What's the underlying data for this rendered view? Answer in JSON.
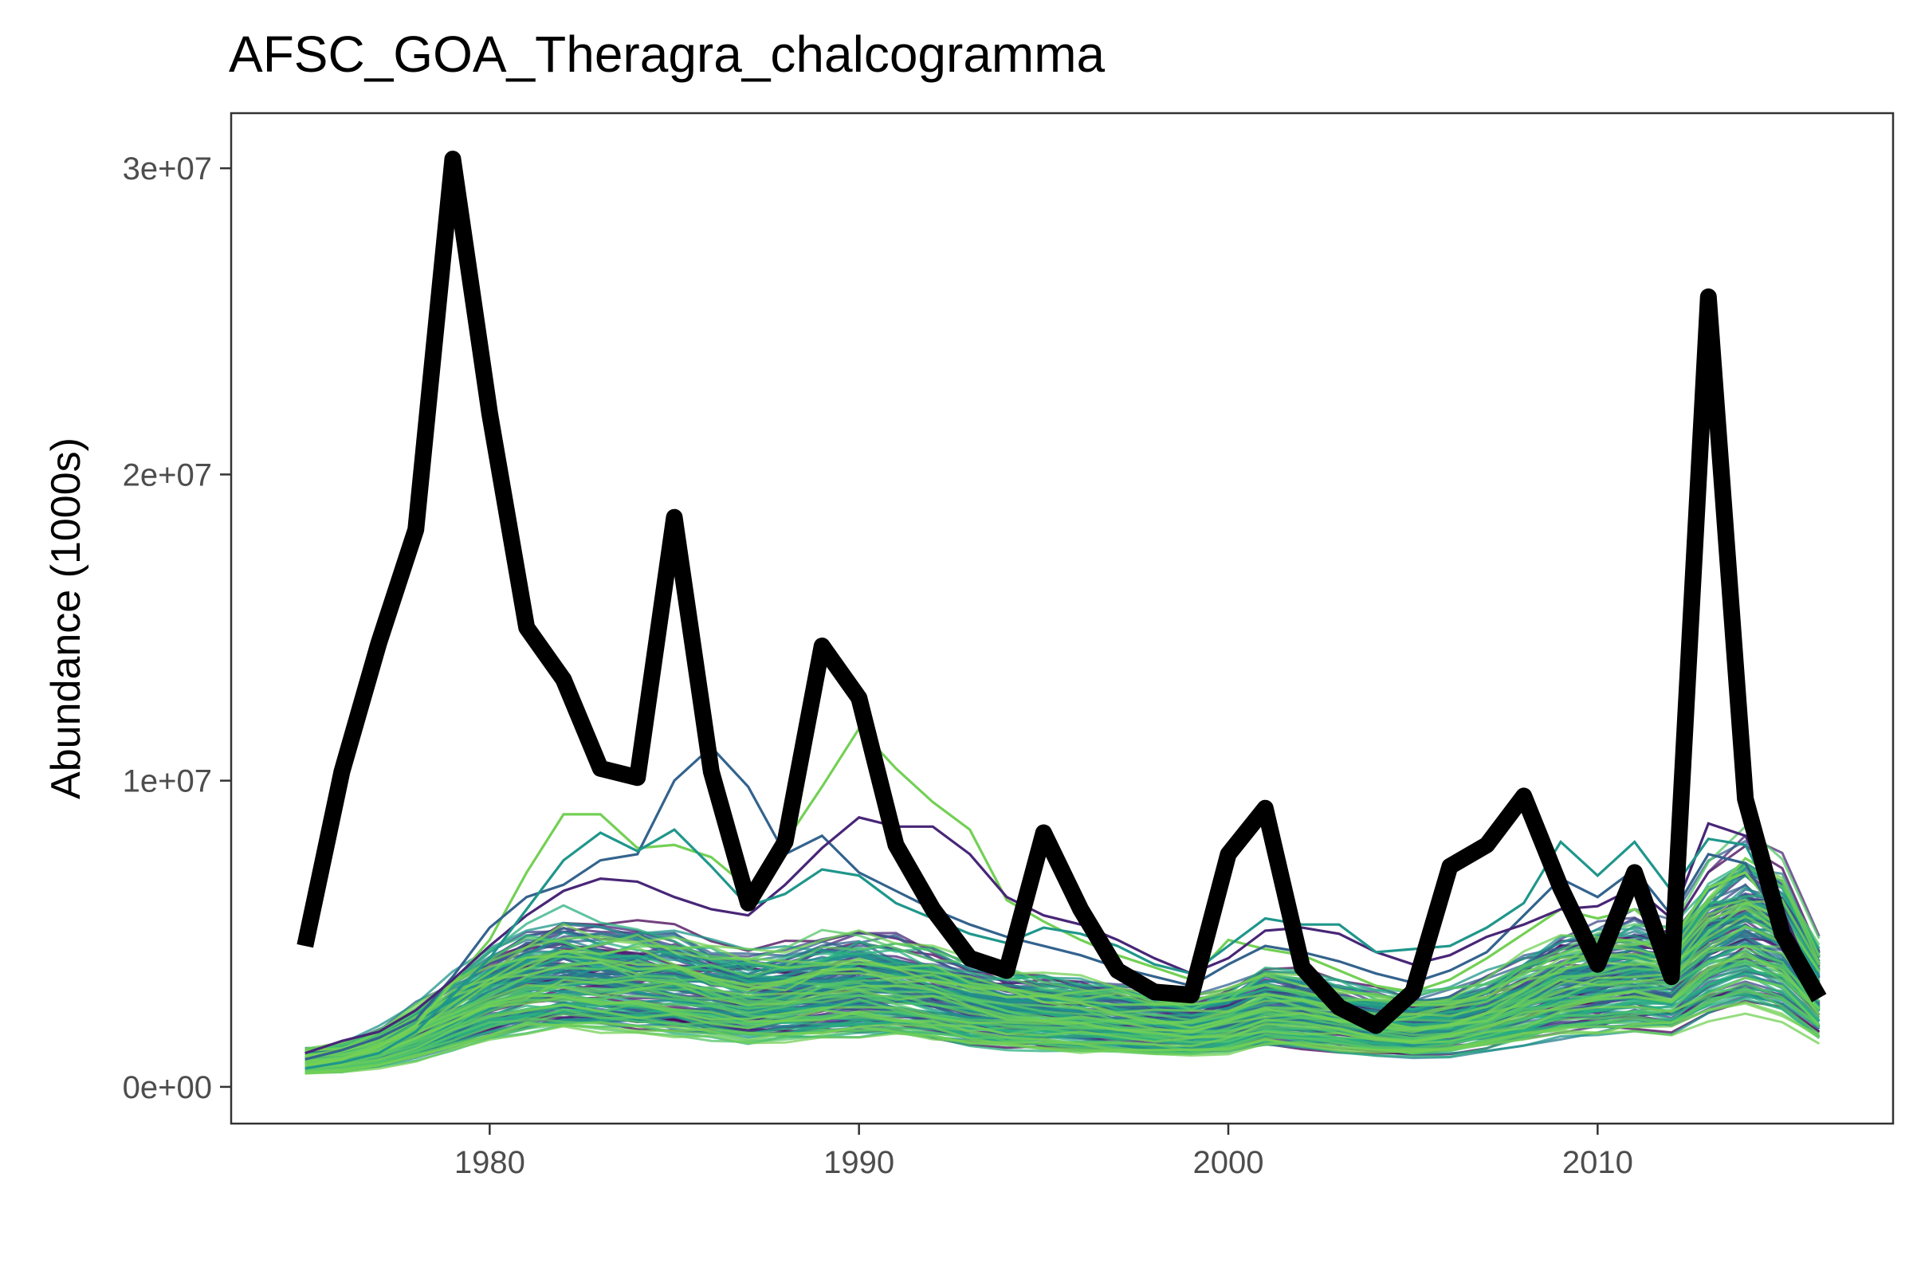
{
  "chart_data": {
    "type": "line",
    "title": "AFSC_GOA_Theragra_chalcogramma",
    "xlabel": "",
    "ylabel": "Abundance (1000s)",
    "xlim": [
      1973,
      2018
    ],
    "ylim": [
      -1200000,
      31800000
    ],
    "x_ticks": [
      1980,
      1990,
      2000,
      2010
    ],
    "y_ticks": [
      {
        "value": 0,
        "label": "0e+00"
      },
      {
        "value": 10000000,
        "label": "1e+07"
      },
      {
        "value": 20000000,
        "label": "2e+07"
      },
      {
        "value": 30000000,
        "label": "3e+07"
      }
    ],
    "grid": false,
    "legend": "none",
    "observed": {
      "color": "#000000",
      "x": [
        1975,
        1976,
        1977,
        1978,
        1979,
        1980,
        1981,
        1982,
        1983,
        1984,
        1985,
        1986,
        1987,
        1988,
        1989,
        1990,
        1991,
        1992,
        1993,
        1994,
        1995,
        1996,
        1997,
        1998,
        1999,
        2000,
        2001,
        2002,
        2003,
        2004,
        2005,
        2006,
        2007,
        2008,
        2009,
        2010,
        2011,
        2012,
        2013,
        2014,
        2015,
        2016
      ],
      "y": [
        4600000,
        10300000,
        14500000,
        18200000,
        30300000,
        22000000,
        15000000,
        13300000,
        10400000,
        10100000,
        18600000,
        10300000,
        6000000,
        8000000,
        14400000,
        12700000,
        7900000,
        5800000,
        4200000,
        3800000,
        8300000,
        5800000,
        3800000,
        3100000,
        3000000,
        7600000,
        9100000,
        3900000,
        2600000,
        2000000,
        3100000,
        7200000,
        7900000,
        9500000,
        6500000,
        4000000,
        7000000,
        3600000,
        25800000,
        9400000,
        5000000,
        2900000
      ]
    },
    "simulated": {
      "count": 140,
      "palette": [
        "#440154",
        "#482677",
        "#3f4788",
        "#33638d",
        "#287d8e",
        "#1f968b",
        "#29af7f",
        "#55c667",
        "#73d055"
      ],
      "x": [
        1975,
        1976,
        1977,
        1978,
        1979,
        1980,
        1981,
        1982,
        1983,
        1984,
        1985,
        1986,
        1987,
        1988,
        1989,
        1990,
        1991,
        1992,
        1993,
        1994,
        1995,
        1996,
        1997,
        1998,
        1999,
        2000,
        2001,
        2002,
        2003,
        2004,
        2005,
        2006,
        2007,
        2008,
        2009,
        2010,
        2011,
        2012,
        2013,
        2014,
        2015,
        2016
      ],
      "median": [
        800000,
        900000,
        1200000,
        1700000,
        2300000,
        2900000,
        3300000,
        3500000,
        3400000,
        3300000,
        3200000,
        3000000,
        2800000,
        2900000,
        3100000,
        3200000,
        3100000,
        2900000,
        2600000,
        2400000,
        2300000,
        2200000,
        2100000,
        2000000,
        1900000,
        2100000,
        2500000,
        2400000,
        2200000,
        2000000,
        1900000,
        2000000,
        2300000,
        2700000,
        3100000,
        3300000,
        3500000,
        3400000,
        4500000,
        5000000,
        4500000,
        3000000
      ],
      "extreme_traces": [
        {
          "color": "#73d055",
          "y": [
            700000,
            900000,
            1300000,
            2000000,
            3400000,
            4800000,
            7000000,
            8900000,
            8900000,
            7800000,
            7900000,
            7500000,
            6500000,
            8000000,
            9800000,
            11700000,
            10400000,
            9300000,
            8400000,
            6100000,
            5400000,
            4800000,
            4300000,
            3900000,
            3500000,
            4800000,
            4500000,
            4300000,
            3800000,
            3300000,
            3100000,
            3500000,
            4200000,
            5000000,
            5800000,
            5500000,
            5800000,
            4800000,
            6500000,
            7000000,
            5500000,
            3000000
          ]
        },
        {
          "color": "#33638d",
          "y": [
            900000,
            1200000,
            1600000,
            2200000,
            3600000,
            5200000,
            6200000,
            6600000,
            7400000,
            7600000,
            10000000,
            11100000,
            9800000,
            7600000,
            8200000,
            7000000,
            6400000,
            5800000,
            5300000,
            4900000,
            4600000,
            4300000,
            3900000,
            3600000,
            3300000,
            4000000,
            4600000,
            4400000,
            4100000,
            3700000,
            3400000,
            3800000,
            4400000,
            5600000,
            6800000,
            6200000,
            7100000,
            5600000,
            7600000,
            7300000,
            5200000,
            2900000
          ]
        },
        {
          "color": "#482677",
          "y": [
            1100000,
            1500000,
            1800000,
            2500000,
            3500000,
            4600000,
            5600000,
            6400000,
            6800000,
            6700000,
            6200000,
            5800000,
            5600000,
            6600000,
            7800000,
            8800000,
            8500000,
            8500000,
            7600000,
            6200000,
            5600000,
            5300000,
            4800000,
            4200000,
            3700000,
            4200000,
            5100000,
            5200000,
            5000000,
            4400000,
            4000000,
            4300000,
            4900000,
            5300000,
            5800000,
            5900000,
            6500000,
            5500000,
            8600000,
            8200000,
            5800000,
            3000000
          ]
        },
        {
          "color": "#1f968b",
          "y": [
            600000,
            800000,
            1100000,
            1800000,
            3000000,
            4200000,
            5800000,
            7400000,
            8300000,
            7700000,
            8400000,
            7200000,
            5900000,
            6300000,
            7100000,
            6900000,
            6000000,
            5500000,
            5000000,
            4700000,
            5200000,
            5000000,
            4600000,
            4000000,
            3700000,
            4600000,
            5500000,
            5300000,
            5300000,
            4400000,
            4500000,
            4600000,
            5200000,
            6000000,
            8000000,
            6900000,
            8000000,
            6400000,
            8100000,
            7900000,
            5600000,
            2900000
          ]
        }
      ]
    }
  }
}
